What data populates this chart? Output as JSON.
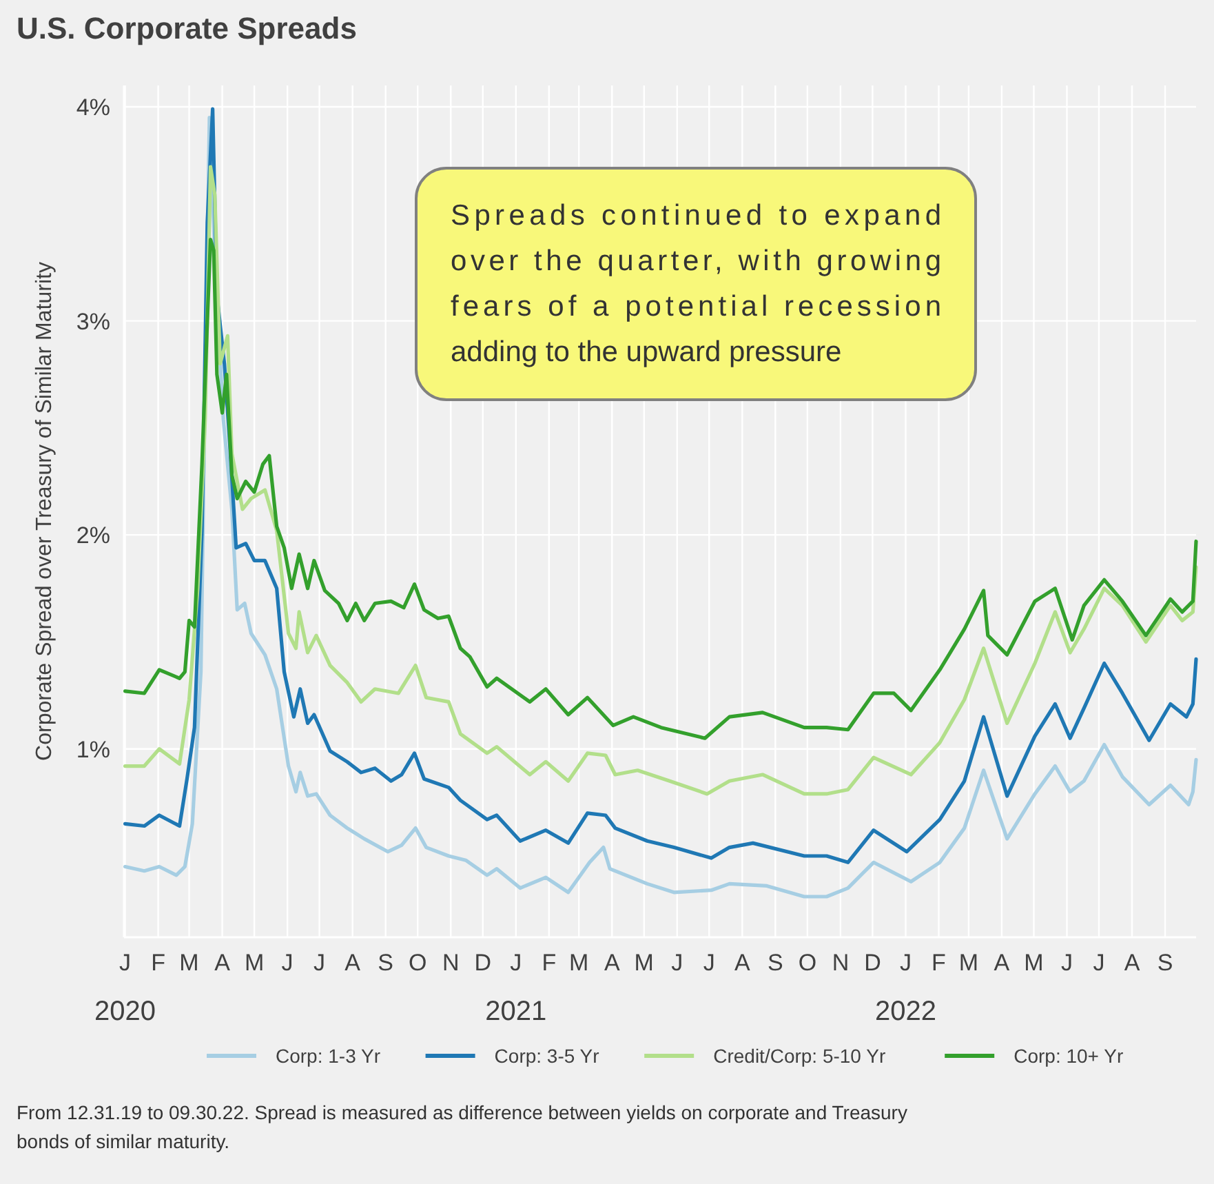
{
  "chart_data": {
    "type": "line",
    "title": "U.S. Corporate Spreads",
    "ylabel": "Corporate Spread over Treasury of Similar Maturity",
    "xlim": [
      "2019-12-31",
      "2022-09-30"
    ],
    "ylim": [
      0.12,
      4.1
    ],
    "yticks": [
      {
        "value": 1,
        "label": "1%"
      },
      {
        "value": 2,
        "label": "2%"
      },
      {
        "value": 3,
        "label": "3%"
      },
      {
        "value": 4,
        "label": "4%"
      }
    ],
    "xticks": [
      {
        "value": "2020-01",
        "label": "J\n2020"
      },
      {
        "value": "2020-02",
        "label": "F"
      },
      {
        "value": "2020-03",
        "label": "M"
      },
      {
        "value": "2020-04",
        "label": "A"
      },
      {
        "value": "2020-05",
        "label": "M"
      },
      {
        "value": "2020-06",
        "label": "J"
      },
      {
        "value": "2020-07",
        "label": "J"
      },
      {
        "value": "2020-08",
        "label": "A"
      },
      {
        "value": "2020-09",
        "label": "S"
      },
      {
        "value": "2020-10",
        "label": "O"
      },
      {
        "value": "2020-11",
        "label": "N"
      },
      {
        "value": "2020-12",
        "label": "D"
      },
      {
        "value": "2021-01",
        "label": "J\n2021"
      },
      {
        "value": "2021-02",
        "label": "F"
      },
      {
        "value": "2021-03",
        "label": "M"
      },
      {
        "value": "2021-04",
        "label": "A"
      },
      {
        "value": "2021-05",
        "label": "M"
      },
      {
        "value": "2021-06",
        "label": "J"
      },
      {
        "value": "2021-07",
        "label": "J"
      },
      {
        "value": "2021-08",
        "label": "A"
      },
      {
        "value": "2021-09",
        "label": "S"
      },
      {
        "value": "2021-10",
        "label": "O"
      },
      {
        "value": "2021-11",
        "label": "N"
      },
      {
        "value": "2021-12",
        "label": "D"
      },
      {
        "value": "2022-01",
        "label": "J\n2022"
      },
      {
        "value": "2022-02",
        "label": "F"
      },
      {
        "value": "2022-03",
        "label": "M"
      },
      {
        "value": "2022-04",
        "label": "A"
      },
      {
        "value": "2022-05",
        "label": "M"
      },
      {
        "value": "2022-06",
        "label": "J"
      },
      {
        "value": "2022-07",
        "label": "J"
      },
      {
        "value": "2022-08",
        "label": "A"
      },
      {
        "value": "2022-09",
        "label": "S"
      }
    ],
    "grid": true,
    "legend": "bottom",
    "marker": "none",
    "line_style": "solid",
    "annotations": [
      "Spreads continued to expand over the quarter, with growing fears of a potential recession adding to the upward pressure",
      "From 12.31.19 to 09.30.22. Spread is measured as difference between yields on corporate and Treasury bonds of similar maturity."
    ],
    "series": [
      {
        "name": "Corp: 1-3 Yr",
        "color": "#a6cee3",
        "x": [
          "2020-01-01",
          "2020-01-19",
          "2020-02-02",
          "2020-02-18",
          "2020-02-26",
          "2020-03-04",
          "2020-03-12",
          "2020-03-17",
          "2020-03-20",
          "2020-03-25",
          "2020-04-02",
          "2020-04-10",
          "2020-04-15",
          "2020-04-22",
          "2020-04-28",
          "2020-05-11",
          "2020-05-22",
          "2020-06-02",
          "2020-06-09",
          "2020-06-13",
          "2020-06-20",
          "2020-06-28",
          "2020-07-11",
          "2020-07-27",
          "2020-08-12",
          "2020-09-03",
          "2020-09-16",
          "2020-09-29",
          "2020-10-09",
          "2020-10-30",
          "2020-11-15",
          "2020-12-05",
          "2020-12-14",
          "2021-01-05",
          "2021-01-29",
          "2021-02-19",
          "2021-03-11",
          "2021-03-24",
          "2021-03-30",
          "2021-05-04",
          "2021-05-29",
          "2021-07-03",
          "2021-07-20",
          "2021-08-24",
          "2021-09-28",
          "2021-10-19",
          "2021-11-08",
          "2021-12-02",
          "2022-01-06",
          "2022-02-02",
          "2022-02-25",
          "2022-03-15",
          "2022-04-06",
          "2022-05-02",
          "2022-05-21",
          "2022-06-04",
          "2022-06-17",
          "2022-07-06",
          "2022-07-23",
          "2022-08-17",
          "2022-09-06",
          "2022-09-23",
          "2022-09-27",
          "2022-09-30"
        ],
        "values": [
          0.45,
          0.43,
          0.45,
          0.41,
          0.45,
          0.65,
          1.36,
          3.06,
          3.95,
          3.32,
          2.54,
          2.12,
          1.65,
          1.68,
          1.54,
          1.44,
          1.28,
          0.92,
          0.8,
          0.89,
          0.78,
          0.79,
          0.69,
          0.63,
          0.58,
          0.52,
          0.55,
          0.63,
          0.54,
          0.5,
          0.48,
          0.41,
          0.44,
          0.35,
          0.4,
          0.33,
          0.47,
          0.54,
          0.44,
          0.37,
          0.33,
          0.34,
          0.37,
          0.36,
          0.31,
          0.31,
          0.35,
          0.47,
          0.38,
          0.47,
          0.63,
          0.9,
          0.58,
          0.79,
          0.92,
          0.8,
          0.85,
          1.02,
          0.87,
          0.74,
          0.83,
          0.74,
          0.8,
          0.95
        ]
      },
      {
        "name": "Corp: 3-5 Yr",
        "color": "#1f78b4",
        "x": [
          "2020-01-01",
          "2020-01-19",
          "2020-02-02",
          "2020-02-21",
          "2020-02-28",
          "2020-03-06",
          "2020-03-13",
          "2020-03-18",
          "2020-03-23",
          "2020-03-27",
          "2020-04-03",
          "2020-04-08",
          "2020-04-14",
          "2020-04-23",
          "2020-05-01",
          "2020-05-11",
          "2020-05-22",
          "2020-05-29",
          "2020-06-07",
          "2020-06-13",
          "2020-06-20",
          "2020-06-26",
          "2020-07-11",
          "2020-07-27",
          "2020-08-09",
          "2020-08-22",
          "2020-09-06",
          "2020-09-16",
          "2020-09-28",
          "2020-10-07",
          "2020-10-30",
          "2020-11-10",
          "2020-12-05",
          "2020-12-14",
          "2021-01-05",
          "2021-01-29",
          "2021-02-19",
          "2021-03-09",
          "2021-03-26",
          "2021-04-04",
          "2021-05-04",
          "2021-05-29",
          "2021-07-03",
          "2021-07-20",
          "2021-08-11",
          "2021-09-28",
          "2021-10-19",
          "2021-11-08",
          "2021-12-02",
          "2022-01-02",
          "2022-02-02",
          "2022-02-25",
          "2022-03-15",
          "2022-04-06",
          "2022-05-02",
          "2022-05-21",
          "2022-06-04",
          "2022-06-17",
          "2022-07-06",
          "2022-07-23",
          "2022-08-17",
          "2022-09-06",
          "2022-09-21",
          "2022-09-27",
          "2022-09-30"
        ],
        "values": [
          0.65,
          0.64,
          0.69,
          0.64,
          0.86,
          1.1,
          2.02,
          3.46,
          3.99,
          3.12,
          2.8,
          2.43,
          1.94,
          1.96,
          1.88,
          1.88,
          1.75,
          1.36,
          1.15,
          1.28,
          1.12,
          1.16,
          0.99,
          0.94,
          0.89,
          0.91,
          0.85,
          0.88,
          0.98,
          0.86,
          0.82,
          0.76,
          0.67,
          0.69,
          0.57,
          0.62,
          0.56,
          0.7,
          0.69,
          0.63,
          0.57,
          0.54,
          0.49,
          0.54,
          0.56,
          0.5,
          0.5,
          0.47,
          0.62,
          0.52,
          0.67,
          0.85,
          1.15,
          0.78,
          1.06,
          1.21,
          1.05,
          1.19,
          1.4,
          1.26,
          1.04,
          1.21,
          1.15,
          1.21,
          1.42
        ]
      },
      {
        "name": "Credit/Corp: 5-10 Yr",
        "color": "#b2df8a",
        "x": [
          "2020-01-01",
          "2020-01-19",
          "2020-02-02",
          "2020-02-21",
          "2020-03-01",
          "2020-03-09",
          "2020-03-16",
          "2020-03-21",
          "2020-03-25",
          "2020-03-30",
          "2020-04-06",
          "2020-04-10",
          "2020-04-20",
          "2020-04-28",
          "2020-05-11",
          "2020-05-22",
          "2020-06-02",
          "2020-06-09",
          "2020-06-12",
          "2020-06-20",
          "2020-06-28",
          "2020-07-11",
          "2020-07-27",
          "2020-08-09",
          "2020-08-22",
          "2020-09-13",
          "2020-09-29",
          "2020-10-09",
          "2020-10-30",
          "2020-11-10",
          "2020-12-05",
          "2020-12-14",
          "2021-01-14",
          "2021-01-29",
          "2021-02-19",
          "2021-03-09",
          "2021-03-26",
          "2021-04-04",
          "2021-04-25",
          "2021-05-25",
          "2021-06-29",
          "2021-07-20",
          "2021-08-20",
          "2021-09-28",
          "2021-10-19",
          "2021-11-08",
          "2021-12-02",
          "2022-01-06",
          "2022-02-02",
          "2022-02-25",
          "2022-03-15",
          "2022-04-06",
          "2022-05-02",
          "2022-05-21",
          "2022-06-04",
          "2022-06-17",
          "2022-07-06",
          "2022-07-23",
          "2022-08-14",
          "2022-09-06",
          "2022-09-17",
          "2022-09-27",
          "2022-09-30"
        ],
        "values": [
          0.92,
          0.92,
          1.0,
          0.93,
          1.23,
          1.75,
          2.54,
          3.72,
          3.59,
          2.8,
          2.93,
          2.38,
          2.12,
          2.17,
          2.21,
          2.02,
          1.54,
          1.47,
          1.64,
          1.45,
          1.53,
          1.39,
          1.31,
          1.22,
          1.28,
          1.26,
          1.39,
          1.24,
          1.22,
          1.07,
          0.98,
          1.01,
          0.88,
          0.94,
          0.85,
          0.98,
          0.97,
          0.88,
          0.9,
          0.85,
          0.79,
          0.85,
          0.88,
          0.79,
          0.79,
          0.81,
          0.96,
          0.88,
          1.03,
          1.23,
          1.47,
          1.12,
          1.4,
          1.64,
          1.45,
          1.56,
          1.75,
          1.67,
          1.5,
          1.67,
          1.6,
          1.64,
          1.85
        ]
      },
      {
        "name": "Corp: 10+ Yr",
        "color": "#33a02c",
        "x": [
          "2020-01-01",
          "2020-01-19",
          "2020-02-02",
          "2020-02-21",
          "2020-02-26",
          "2020-03-01",
          "2020-03-06",
          "2020-03-13",
          "2020-03-18",
          "2020-03-21",
          "2020-03-24",
          "2020-03-27",
          "2020-04-01",
          "2020-04-05",
          "2020-04-10",
          "2020-04-15",
          "2020-04-23",
          "2020-05-01",
          "2020-05-09",
          "2020-05-15",
          "2020-05-22",
          "2020-05-29",
          "2020-06-05",
          "2020-06-12",
          "2020-06-20",
          "2020-06-26",
          "2020-07-06",
          "2020-07-19",
          "2020-07-27",
          "2020-08-04",
          "2020-08-12",
          "2020-08-22",
          "2020-09-06",
          "2020-09-18",
          "2020-09-28",
          "2020-10-07",
          "2020-10-20",
          "2020-10-30",
          "2020-11-10",
          "2020-11-19",
          "2020-12-05",
          "2020-12-14",
          "2021-01-14",
          "2021-01-29",
          "2021-02-19",
          "2021-03-09",
          "2021-04-02",
          "2021-04-21",
          "2021-05-17",
          "2021-06-27",
          "2021-07-20",
          "2021-08-20",
          "2021-09-28",
          "2021-10-19",
          "2021-11-08",
          "2021-12-02",
          "2021-12-21",
          "2022-01-06",
          "2022-02-02",
          "2022-02-25",
          "2022-03-15",
          "2022-03-19",
          "2022-04-06",
          "2022-05-02",
          "2022-05-21",
          "2022-06-06",
          "2022-06-17",
          "2022-07-06",
          "2022-07-23",
          "2022-08-14",
          "2022-09-06",
          "2022-09-17",
          "2022-09-27",
          "2022-09-30"
        ],
        "values": [
          1.27,
          1.26,
          1.37,
          1.33,
          1.36,
          1.6,
          1.57,
          2.33,
          3.0,
          3.38,
          3.33,
          2.75,
          2.57,
          2.75,
          2.28,
          2.17,
          2.25,
          2.2,
          2.33,
          2.37,
          2.04,
          1.94,
          1.75,
          1.91,
          1.75,
          1.88,
          1.74,
          1.68,
          1.6,
          1.68,
          1.6,
          1.68,
          1.69,
          1.66,
          1.77,
          1.65,
          1.61,
          1.62,
          1.47,
          1.43,
          1.29,
          1.33,
          1.22,
          1.28,
          1.16,
          1.24,
          1.11,
          1.15,
          1.1,
          1.05,
          1.15,
          1.17,
          1.1,
          1.1,
          1.09,
          1.26,
          1.26,
          1.18,
          1.37,
          1.56,
          1.74,
          1.53,
          1.44,
          1.69,
          1.75,
          1.51,
          1.67,
          1.79,
          1.69,
          1.53,
          1.7,
          1.64,
          1.69,
          1.97
        ]
      }
    ]
  }
}
